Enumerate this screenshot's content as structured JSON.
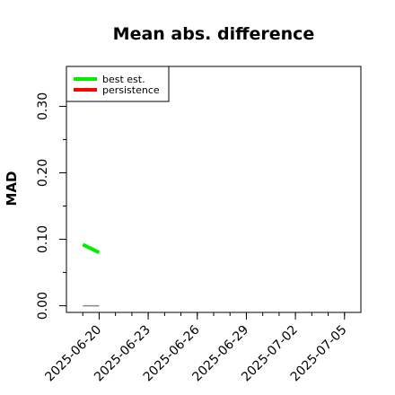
{
  "chart_data": {
    "type": "line",
    "title": "Mean abs. difference",
    "xlabel": "",
    "ylabel": "MAD",
    "ylim": [
      -0.01,
      0.36
    ],
    "xlim": [
      "2025-06-18",
      "2025-07-06"
    ],
    "yticks": [
      0.0,
      0.1,
      0.2,
      0.3
    ],
    "ytick_labels": [
      "0.00",
      "0.10",
      "0.20",
      "0.30"
    ],
    "xticks": [
      "2025-06-20",
      "2025-06-23",
      "2025-06-26",
      "2025-06-29",
      "2025-07-02",
      "2025-07-05"
    ],
    "grid": false,
    "legend": {
      "position": "top-left",
      "entries": [
        {
          "label": "best est.",
          "color": "#00ee00"
        },
        {
          "label": "persistence",
          "color": "#ff0000"
        }
      ]
    },
    "series": [
      {
        "name": "best est.",
        "color": "#00ee00",
        "x": [
          "2025-06-19",
          "2025-06-20"
        ],
        "y": [
          0.092,
          0.08
        ]
      },
      {
        "name": "persistence",
        "color": "#ff0000",
        "x": [],
        "y": []
      }
    ],
    "reference_line": {
      "color": "#888888",
      "x": [
        "2025-06-19",
        "2025-06-20"
      ],
      "y": [
        0.0,
        0.0
      ]
    }
  }
}
